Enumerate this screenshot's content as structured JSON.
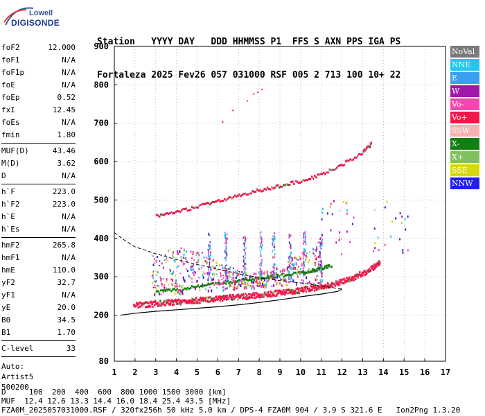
{
  "logo": {
    "line1": "Lowell",
    "line2": "DIGISONDE"
  },
  "header": {
    "line1": [
      "Station",
      "YYYY",
      "DAY",
      "DDD",
      "HHMMSS",
      "P1",
      "FFS",
      "S",
      "AXN",
      "PPS",
      "IGA",
      "PS"
    ],
    "line2": [
      "Fortaleza",
      "2025",
      "Fev26",
      "057",
      "031000",
      "RSF",
      "005",
      "2",
      "713",
      "100",
      "10+",
      "22"
    ]
  },
  "params": [
    [
      [
        "foF2",
        "12.000"
      ],
      [
        "foF1",
        "N/A"
      ],
      [
        "foF1p",
        "N/A"
      ],
      [
        "foE",
        "N/A"
      ],
      [
        "foEp",
        "0.52"
      ],
      [
        "fxI",
        "12.45"
      ],
      [
        "foEs",
        "N/A"
      ],
      [
        "fmin",
        "1.80"
      ]
    ],
    [
      [
        "MUF(D)",
        "43.46"
      ],
      [
        "M(D)",
        "3.62"
      ],
      [
        "D",
        "N/A"
      ]
    ],
    [
      [
        "h`F",
        "223.0"
      ],
      [
        "h`F2",
        "223.0"
      ],
      [
        "h`E",
        "N/A"
      ],
      [
        "h`Es",
        "N/A"
      ]
    ],
    [
      [
        "hmF2",
        "265.8"
      ],
      [
        "hmF1",
        "N/A"
      ],
      [
        "hmE",
        "110.0"
      ],
      [
        "yF2",
        "32.7"
      ],
      [
        "yF1",
        "N/A"
      ],
      [
        "yE",
        "20.0"
      ],
      [
        "B0",
        "34.5"
      ],
      [
        "B1",
        "1.70"
      ]
    ],
    [
      [
        "C-level",
        "33"
      ]
    ]
  ],
  "autoscale": {
    "line1": "Auto:",
    "line2": "Artist5",
    "line3": "500200"
  },
  "bottom": {
    "d_line": "D     100  200  400  600  800 1000 1500 3000 [km]",
    "muf_line": "MUF  12.4 12.6 13.3 14.4 16.0 18.4 25.4 43.5 [MHz]",
    "file_line": "FZA0M_2025057031000.RSF / 320fx256h 50 kHz 5.0 km / DPS-4 FZA0M 904 / 3.9 S 321.6 E   Ion2Png 1.3.20"
  },
  "legend": [
    {
      "label": "NoVal",
      "color": "#7a7a7a"
    },
    {
      "label": "NNE",
      "color": "#1ec8f0"
    },
    {
      "label": "E",
      "color": "#3aa0f0"
    },
    {
      "label": "W",
      "color": "#a01aa8"
    },
    {
      "label": "Vo-",
      "color": "#f048b0"
    },
    {
      "label": "Vo+",
      "color": "#f01848"
    },
    {
      "label": "SSW",
      "color": "#f8b0b0"
    },
    {
      "label": "X-",
      "color": "#108010"
    },
    {
      "label": "X+",
      "color": "#80c060"
    },
    {
      "label": "SSE",
      "color": "#d8d810"
    },
    {
      "label": "NNW",
      "color": "#2020e0"
    }
  ],
  "chart_data": {
    "type": "scatter",
    "xlim": [
      1,
      17
    ],
    "ylim": [
      80,
      900
    ],
    "x_ticks": [
      1,
      2,
      3,
      4,
      5,
      6,
      7,
      8,
      9,
      10,
      11,
      12,
      13,
      14,
      15,
      16,
      17
    ],
    "y_ticks": [
      80,
      200,
      300,
      400,
      500,
      600,
      700,
      800,
      900
    ],
    "grid": "dotted",
    "legend_position": "right",
    "traces": [
      {
        "name": "O-trace F2",
        "color": "#f01848",
        "x": [
          1.9,
          2.5,
          3,
          3.5,
          4,
          4.5,
          5,
          5.5,
          6,
          6.5,
          7,
          7.5,
          8,
          8.5,
          9,
          9.5,
          10,
          10.5,
          11,
          11.5,
          12,
          12.5,
          13,
          13.5,
          13.8
        ],
        "y": [
          228,
          230,
          233,
          235,
          237,
          239,
          241,
          243,
          245,
          248,
          250,
          252,
          255,
          258,
          261,
          264,
          268,
          272,
          277,
          283,
          290,
          300,
          312,
          328,
          340
        ]
      },
      {
        "name": "X-trace F2",
        "color": "#108010",
        "x": [
          3,
          4,
          5,
          6,
          7,
          8,
          9,
          10,
          10.5,
          11,
          11.5
        ],
        "y": [
          265,
          270,
          278,
          285,
          292,
          300,
          306,
          312,
          318,
          325,
          332
        ]
      },
      {
        "name": "Multi-hop",
        "color": "#f01848",
        "x": [
          3,
          4,
          5,
          6,
          7,
          8,
          9,
          10,
          11,
          12,
          13,
          13.4
        ],
        "y": [
          462,
          472,
          485,
          500,
          515,
          528,
          540,
          552,
          570,
          595,
          628,
          650
        ]
      }
    ],
    "profile": {
      "dashed": {
        "x": [
          1,
          1.5,
          2,
          3,
          4,
          5,
          6,
          7,
          8,
          9,
          10,
          11,
          11.5,
          12
        ],
        "y": [
          415,
          395,
          378,
          360,
          345,
          332,
          320,
          308,
          298,
          290,
          284,
          276,
          272,
          268
        ]
      },
      "solid": {
        "x": [
          1.3,
          2,
          3,
          4,
          5,
          6,
          7,
          8,
          9,
          10,
          11,
          11.8,
          12
        ],
        "y": [
          200,
          205,
          210,
          214,
          218,
          222,
          227,
          233,
          240,
          248,
          255,
          262,
          268
        ]
      }
    }
  }
}
